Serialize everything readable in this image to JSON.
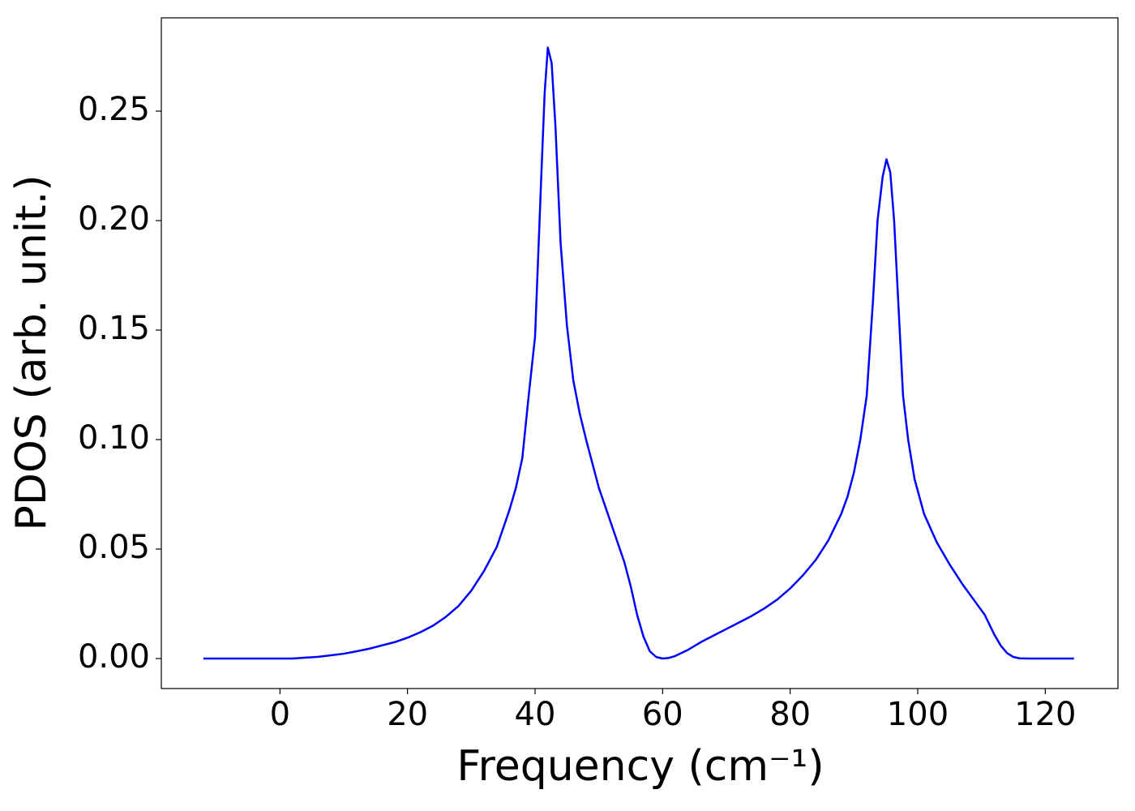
{
  "chart_data": {
    "type": "line",
    "xlabel": "Frequency (cm⁻¹)",
    "ylabel": "PDOS (arb. unit.)",
    "x": [
      -12,
      0,
      2,
      4,
      6,
      8,
      10,
      12,
      14,
      16,
      18,
      20,
      22,
      24,
      26,
      28,
      30,
      32,
      34,
      36,
      37,
      38,
      39,
      40,
      41,
      41.5,
      42,
      42.6,
      43.2,
      44,
      45,
      46,
      47,
      48,
      50,
      52,
      54,
      55,
      56,
      57,
      58,
      59,
      60,
      61,
      62,
      64,
      66,
      68,
      70,
      72,
      74,
      76,
      78,
      80,
      82,
      84,
      86,
      88,
      89,
      90,
      91,
      92,
      93,
      93.7,
      94.5,
      95.1,
      95.7,
      96.3,
      97,
      97.7,
      98.5,
      99.5,
      101,
      103,
      105,
      107,
      109,
      110.5,
      112,
      113,
      114,
      115,
      116,
      118,
      124.5
    ],
    "series": [
      {
        "name": "PDOS",
        "color": "#0000ff",
        "values": [
          0,
          0,
          0,
          0.0004,
          0.0008,
          0.0015,
          0.0022,
          0.0033,
          0.0045,
          0.006,
          0.0075,
          0.0095,
          0.012,
          0.015,
          0.019,
          0.024,
          0.031,
          0.04,
          0.051,
          0.068,
          0.078,
          0.0915,
          0.12,
          0.147,
          0.222,
          0.258,
          0.279,
          0.272,
          0.243,
          0.19,
          0.152,
          0.127,
          0.112,
          0.1,
          0.078,
          0.061,
          0.044,
          0.033,
          0.02,
          0.01,
          0.0033,
          0.0007,
          0,
          0.0003,
          0.0012,
          0.004,
          0.0075,
          0.0105,
          0.0135,
          0.0165,
          0.0195,
          0.023,
          0.027,
          0.032,
          0.038,
          0.045,
          0.054,
          0.066,
          0.074,
          0.085,
          0.1,
          0.12,
          0.164,
          0.2,
          0.22,
          0.228,
          0.222,
          0.2,
          0.16,
          0.12,
          0.1,
          0.082,
          0.066,
          0.053,
          0.043,
          0.034,
          0.026,
          0.02,
          0.011,
          0.006,
          0.0025,
          0.0007,
          0.0001,
          0,
          0
        ]
      }
    ],
    "xlim": [
      -18.6,
      131.4
    ],
    "ylim": [
      -0.0137,
      0.2926
    ],
    "xticks": [
      0,
      20,
      40,
      60,
      80,
      100,
      120
    ],
    "yticks": [
      {
        "value": 0,
        "label": "0.00"
      },
      {
        "value": 0.05,
        "label": "0.05"
      },
      {
        "value": 0.1,
        "label": "0.10"
      },
      {
        "value": 0.15,
        "label": "0.15"
      },
      {
        "value": 0.2,
        "label": "0.20"
      },
      {
        "value": 0.25,
        "label": "0.25"
      }
    ],
    "grid": false
  }
}
